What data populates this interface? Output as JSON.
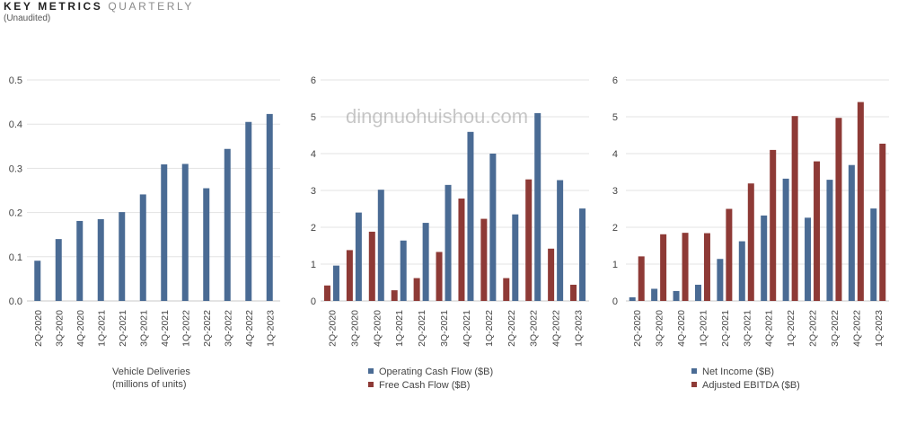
{
  "header": {
    "title_bold": "KEY METRICS",
    "title_light": "QUARTERLY",
    "subtitle": "(Unaudited)"
  },
  "watermark": "dingnuohuishou.com",
  "colors": {
    "blue": "#4a6b94",
    "red": "#8e3a36",
    "grid": "#e3e3e3",
    "axis": "#c8c8c8"
  },
  "chart_data": [
    {
      "type": "bar",
      "categories": [
        "2Q-2020",
        "3Q-2020",
        "4Q-2020",
        "1Q-2021",
        "2Q-2021",
        "3Q-2021",
        "4Q-2021",
        "1Q-2022",
        "2Q-2022",
        "3Q-2022",
        "4Q-2022",
        "1Q-2023"
      ],
      "series": [
        {
          "name": "",
          "color": "#4a6b94",
          "values": [
            0.091,
            0.14,
            0.181,
            0.185,
            0.201,
            0.241,
            0.309,
            0.31,
            0.255,
            0.344,
            0.405,
            0.423
          ]
        }
      ],
      "ylim": [
        0,
        0.5
      ],
      "yticks": [
        "0.0",
        "0.1",
        "0.2",
        "0.3",
        "0.4",
        "0.5"
      ],
      "xlabel_lines": [
        "Vehicle Deliveries",
        "(millions of units)"
      ],
      "legend": [],
      "grid": true
    },
    {
      "type": "bar",
      "categories": [
        "2Q-2020",
        "3Q-2020",
        "4Q-2020",
        "1Q-2021",
        "2Q-2021",
        "3Q-2021",
        "4Q-2021",
        "1Q-2022",
        "2Q-2022",
        "3Q-2022",
        "4Q-2022",
        "1Q-2023"
      ],
      "series": [
        {
          "name": "Free Cash Flow ($B)",
          "color": "#8e3a36",
          "values": [
            0.42,
            1.38,
            1.88,
            0.29,
            0.62,
            1.33,
            2.78,
            2.23,
            0.62,
            3.3,
            1.42,
            0.44
          ]
        },
        {
          "name": "Operating Cash Flow ($B)",
          "color": "#4a6b94",
          "values": [
            0.96,
            2.4,
            3.02,
            1.64,
            2.12,
            3.15,
            4.59,
            4.0,
            2.35,
            5.1,
            3.28,
            2.51
          ]
        }
      ],
      "ylim": [
        0,
        6
      ],
      "yticks": [
        "0",
        "1",
        "2",
        "3",
        "4",
        "5",
        "6"
      ],
      "xlabel_lines": [],
      "legend": [
        "Operating Cash Flow ($B)",
        "Free Cash Flow ($B)"
      ],
      "legend_colors": [
        "#4a6b94",
        "#8e3a36"
      ],
      "grid": true
    },
    {
      "type": "bar",
      "categories": [
        "2Q-2020",
        "3Q-2020",
        "4Q-2020",
        "1Q-2021",
        "2Q-2021",
        "3Q-2021",
        "4Q-2021",
        "1Q-2022",
        "2Q-2022",
        "3Q-2022",
        "4Q-2022",
        "1Q-2023"
      ],
      "series": [
        {
          "name": "Net Income ($B)",
          "color": "#4a6b94",
          "values": [
            0.1,
            0.33,
            0.27,
            0.44,
            1.14,
            1.62,
            2.32,
            3.32,
            2.26,
            3.29,
            3.69,
            2.51
          ]
        },
        {
          "name": "Adjusted EBITDA ($B)",
          "color": "#8e3a36",
          "values": [
            1.21,
            1.81,
            1.85,
            1.84,
            2.5,
            3.19,
            4.1,
            5.02,
            3.79,
            4.97,
            5.4,
            4.27
          ]
        }
      ],
      "ylim": [
        0,
        6
      ],
      "yticks": [
        "0",
        "1",
        "2",
        "3",
        "4",
        "5",
        "6"
      ],
      "xlabel_lines": [],
      "legend": [
        "Net Income ($B)",
        "Adjusted EBITDA ($B)"
      ],
      "legend_colors": [
        "#4a6b94",
        "#8e3a36"
      ],
      "grid": true
    }
  ]
}
